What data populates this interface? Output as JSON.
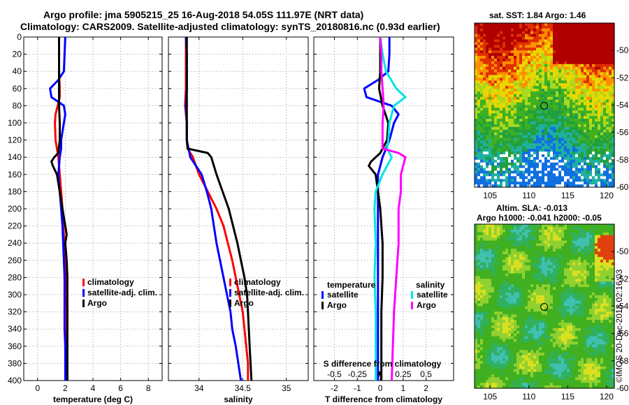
{
  "header": {
    "line1": "Argo profile: jma 5905215_25 16-Aug-2018 54.05S 111.97E (NRT data)",
    "line2": "Climatology: CARS2009. Satellite-adjusted climatology: synTS_20180816.nc (0.93d earlier)"
  },
  "colors": {
    "climatology": "#ff0000",
    "satellite": "#0000ff",
    "argo": "#000000",
    "sat_salinity": "#00e5e5",
    "argo_salinity": "#ff00ff"
  },
  "chart_data": [
    {
      "id": "temperature",
      "type": "line",
      "xlabel": "temperature (deg C)",
      "ylabel": "",
      "xlim": [
        -1,
        9
      ],
      "ylim": [
        400,
        0
      ],
      "xticks": [
        0,
        2,
        4,
        6,
        8
      ],
      "yticks": [
        0,
        20,
        40,
        60,
        80,
        100,
        120,
        140,
        160,
        180,
        200,
        220,
        240,
        260,
        280,
        300,
        320,
        340,
        360,
        380,
        400
      ],
      "legend": [
        "climatology",
        "satellite-adj. clim.",
        "Argo"
      ],
      "series": [
        {
          "name": "climatology",
          "color": "#ff0000",
          "depth": [
            0,
            20,
            40,
            60,
            70,
            80,
            90,
            100,
            120,
            130,
            140,
            150,
            160,
            180,
            200,
            220,
            240,
            260,
            280,
            300,
            320,
            340,
            360,
            380,
            400
          ],
          "x": [
            1.55,
            1.55,
            1.55,
            1.6,
            1.6,
            1.45,
            1.3,
            1.25,
            1.3,
            1.4,
            1.5,
            1.55,
            1.6,
            1.7,
            1.8,
            1.85,
            1.95,
            2.0,
            2.05,
            2.05,
            2.1,
            2.1,
            2.1,
            2.1,
            2.1
          ]
        },
        {
          "name": "satellite-adj. clim.",
          "color": "#0000ff",
          "depth": [
            0,
            20,
            40,
            50,
            60,
            70,
            80,
            90,
            100,
            110,
            120,
            130,
            140,
            150,
            160,
            180,
            200,
            220,
            240,
            260,
            280,
            300,
            320,
            340,
            360,
            380,
            400
          ],
          "x": [
            2.0,
            1.95,
            1.9,
            1.5,
            0.9,
            1.0,
            1.9,
            2.0,
            1.9,
            1.8,
            1.7,
            1.7,
            1.6,
            1.55,
            1.5,
            1.6,
            1.7,
            1.8,
            1.85,
            1.9,
            1.95,
            1.95,
            1.95,
            1.95,
            2.0,
            2.0,
            2.0
          ]
        },
        {
          "name": "Argo",
          "color": "#000000",
          "depth": [
            0,
            20,
            40,
            60,
            80,
            100,
            120,
            135,
            140,
            145,
            150,
            160,
            180,
            200,
            220,
            230,
            240,
            260,
            280,
            300,
            320,
            340,
            360,
            380,
            400
          ],
          "x": [
            1.55,
            1.55,
            1.55,
            1.55,
            1.55,
            1.6,
            1.6,
            1.5,
            1.2,
            1.0,
            1.1,
            1.4,
            1.6,
            1.8,
            2.0,
            2.1,
            2.0,
            2.1,
            2.15,
            2.15,
            2.15,
            2.15,
            2.15,
            2.15,
            2.15
          ]
        }
      ]
    },
    {
      "id": "salinity",
      "type": "line",
      "xlabel": "salinity",
      "ylabel": "",
      "xlim": [
        33.65,
        35.25
      ],
      "ylim": [
        400,
        0
      ],
      "xticks": [
        34,
        34.5,
        35
      ],
      "xtick_labels": [
        "34",
        "34.5",
        "35"
      ],
      "legend": [
        "climatology",
        "satellite-adj. clim.",
        "Argo"
      ],
      "series": [
        {
          "name": "climatology",
          "color": "#ff0000",
          "depth": [
            0,
            20,
            40,
            60,
            80,
            100,
            120,
            130,
            140,
            160,
            180,
            200,
            220,
            240,
            260,
            280,
            300,
            320,
            340,
            360,
            380,
            400
          ],
          "x": [
            33.85,
            33.85,
            33.85,
            33.85,
            33.84,
            33.86,
            33.86,
            33.87,
            33.93,
            34.0,
            34.1,
            34.2,
            34.28,
            34.33,
            34.38,
            34.42,
            34.46,
            34.5,
            34.52,
            34.54,
            34.56,
            34.56
          ]
        },
        {
          "name": "satellite-adj. clim.",
          "color": "#0000ff",
          "depth": [
            0,
            20,
            40,
            60,
            80,
            100,
            120,
            140,
            160,
            180,
            200,
            220,
            240,
            260,
            280,
            300,
            320,
            340,
            360,
            380,
            400
          ],
          "x": [
            33.85,
            33.86,
            33.86,
            33.86,
            33.85,
            33.86,
            33.86,
            33.9,
            34.03,
            34.09,
            34.14,
            34.17,
            34.2,
            34.24,
            34.28,
            34.32,
            34.36,
            34.38,
            34.42,
            34.45,
            34.48
          ]
        },
        {
          "name": "Argo",
          "color": "#000000",
          "depth": [
            0,
            20,
            40,
            60,
            80,
            100,
            120,
            130,
            135,
            140,
            160,
            180,
            200,
            220,
            240,
            260,
            280,
            300,
            320,
            340,
            360,
            380,
            400
          ],
          "x": [
            33.86,
            33.86,
            33.86,
            33.86,
            33.86,
            33.86,
            33.86,
            33.87,
            34.1,
            34.14,
            34.2,
            34.27,
            34.34,
            34.39,
            34.44,
            34.48,
            34.52,
            34.55,
            34.56,
            34.57,
            34.58,
            34.59,
            34.6
          ]
        }
      ]
    },
    {
      "id": "difference",
      "type": "line",
      "xlabel": "T difference from climatology",
      "xlabel_top": "S difference from climatology",
      "xlim": [
        -2.9,
        3.2
      ],
      "ylim": [
        400,
        0
      ],
      "xticks": [
        -2,
        -1,
        0,
        1,
        2
      ],
      "xtick_labels": [
        "-2",
        "-1",
        "0",
        "1",
        "2"
      ],
      "s_ticks": [
        -0.5,
        -0.25,
        0,
        0.25,
        0.5
      ],
      "s_tick_labels": [
        "-0.5",
        "-0.25",
        "0",
        "0.25",
        "0.5"
      ],
      "legend_left_title": "temperature",
      "legend_left": [
        "satellite",
        "Argo"
      ],
      "legend_right_title": "salinity",
      "legend_right": [
        "satellite",
        "Argo"
      ],
      "series": [
        {
          "name": "T satellite",
          "color": "#0000ff",
          "depth": [
            0,
            20,
            40,
            50,
            60,
            70,
            80,
            90,
            100,
            120,
            140,
            160,
            180,
            200,
            240,
            280,
            320,
            360,
            400
          ],
          "x": [
            0.4,
            0.4,
            0.35,
            -0.1,
            -0.7,
            -0.6,
            0.5,
            0.8,
            0.6,
            0.4,
            0.1,
            -0.1,
            -0.1,
            -0.1,
            -0.1,
            -0.1,
            -0.1,
            -0.1,
            -0.1
          ]
        },
        {
          "name": "T Argo",
          "color": "#000000",
          "depth": [
            0,
            20,
            40,
            60,
            80,
            100,
            120,
            135,
            145,
            150,
            160,
            180,
            200,
            240,
            280,
            320,
            360,
            400
          ],
          "x": [
            0,
            0,
            0,
            -0.05,
            0.1,
            0.35,
            0.3,
            0.0,
            -0.4,
            -0.5,
            -0.2,
            -0.1,
            0.0,
            0.1,
            0.1,
            0.05,
            0.05,
            0.05
          ]
        },
        {
          "name": "S satellite",
          "color": "#00e5e5",
          "depth": [
            0,
            20,
            40,
            60,
            70,
            80,
            100,
            120,
            130,
            140,
            150,
            160,
            180,
            200,
            240,
            280,
            320,
            360,
            400
          ],
          "x": [
            0.0,
            0.1,
            0.25,
            0.7,
            1.1,
            0.6,
            0.4,
            0.35,
            0.3,
            0.5,
            0.3,
            0.1,
            -0.2,
            -0.25,
            -0.2,
            -0.25,
            -0.2,
            -0.2,
            -0.2
          ]
        },
        {
          "name": "S Argo",
          "color": "#ff00ff",
          "depth": [
            0,
            20,
            40,
            60,
            80,
            100,
            120,
            130,
            135,
            140,
            160,
            180,
            200,
            240,
            280,
            320,
            360,
            400
          ],
          "x": [
            0.0,
            0.05,
            0.05,
            0.1,
            0.15,
            0.1,
            0.1,
            0.1,
            0.8,
            1.1,
            0.9,
            0.9,
            0.8,
            0.8,
            0.7,
            0.6,
            0.55,
            0.5
          ]
        }
      ]
    },
    {
      "id": "sst_map",
      "type": "heatmap",
      "title": "sat. SST: 1.84 Argo: 1.46",
      "xticks": [
        105,
        110,
        115,
        120
      ],
      "yticks": [
        -50,
        -52,
        -54,
        -56,
        -58,
        -60
      ],
      "xlim": [
        103,
        121
      ],
      "ylim": [
        -60,
        -48
      ],
      "argo_position": {
        "lon": 111.97,
        "lat": -54.05
      }
    },
    {
      "id": "sla_map",
      "type": "heatmap",
      "title_line1": "Altim. SLA: -0.013",
      "title_line2": "Argo h1000: -0.041 h2000: -0.05",
      "xticks": [
        105,
        110,
        115,
        120
      ],
      "yticks": [
        -50,
        -52,
        -54,
        -56,
        -58,
        -60
      ],
      "xlim": [
        103,
        121
      ],
      "ylim": [
        -60,
        -48
      ],
      "argo_position": {
        "lon": 111.97,
        "lat": -54.05
      }
    }
  ],
  "footer": {
    "credit": "©IMOS 20-Dec-2018 02:16:03"
  }
}
